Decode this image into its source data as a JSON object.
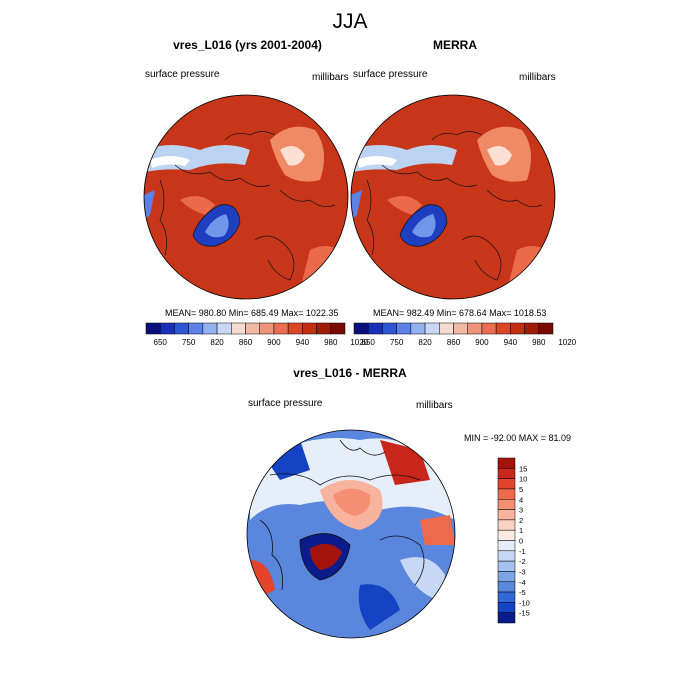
{
  "figure": {
    "title": "JJA"
  },
  "panels": [
    {
      "title": "vres_L016 (yrs 2001-2004)",
      "left_label": "surface pressure",
      "right_label": "millibars",
      "stats": {
        "mean": "980.80",
        "min": "685.49",
        "max": "1022.35",
        "text": "MEAN= 980.80  Min= 685.49  Max= 1022.35"
      }
    },
    {
      "title": "MERRA",
      "left_label": "surface pressure",
      "right_label": "millibars",
      "stats": {
        "mean": "982.49",
        "min": "678.64",
        "max": "1018.53",
        "text": "MEAN= 982.49  Min= 678.64  Max= 1018.53"
      }
    },
    {
      "title": "vres_L016 - MERRA",
      "left_label": "surface pressure",
      "right_label": "millibars",
      "stats": {
        "min": "-92.00",
        "max": "81.09",
        "text": "MIN = -92.00 MAX =  81.09"
      }
    }
  ],
  "chart_data": [
    {
      "type": "heatmap",
      "projection": "north-polar-stereographic",
      "title": "vres_L016 (yrs 2001-2004)",
      "variable": "surface pressure",
      "units": "millibars",
      "mean": 980.8,
      "min": 685.49,
      "max": 1022.35,
      "colorbar": {
        "orientation": "horizontal",
        "tick_labels": [
          "650",
          "750",
          "820",
          "860",
          "900",
          "940",
          "980",
          "1020"
        ],
        "colors": [
          "#0b0f7e",
          "#1a2fb8",
          "#2f55d6",
          "#5c82e8",
          "#93b0f0",
          "#c8d8f6",
          "#f6dcd0",
          "#f2b9a3",
          "#ee9478",
          "#e86e4f",
          "#dc4628",
          "#c22e12",
          "#a01b0a",
          "#7a0c04"
        ]
      }
    },
    {
      "type": "heatmap",
      "projection": "north-polar-stereographic",
      "title": "MERRA",
      "variable": "surface pressure",
      "units": "millibars",
      "mean": 982.49,
      "min": 678.64,
      "max": 1018.53,
      "colorbar": {
        "orientation": "horizontal",
        "tick_labels": [
          "650",
          "750",
          "820",
          "860",
          "900",
          "940",
          "980",
          "1020"
        ],
        "colors": [
          "#0b0f7e",
          "#1a2fb8",
          "#2f55d6",
          "#5c82e8",
          "#93b0f0",
          "#c8d8f6",
          "#f6dcd0",
          "#f2b9a3",
          "#ee9478",
          "#e86e4f",
          "#dc4628",
          "#c22e12",
          "#a01b0a",
          "#7a0c04"
        ]
      }
    },
    {
      "type": "heatmap",
      "projection": "north-polar-stereographic",
      "title": "vres_L016 - MERRA",
      "variable": "surface pressure",
      "units": "millibars",
      "min": -92.0,
      "max": 81.09,
      "colorbar": {
        "orientation": "vertical",
        "tick_labels": [
          "15",
          "10",
          "5",
          "4",
          "3",
          "2",
          "1",
          "0",
          "-1",
          "-2",
          "-3",
          "-4",
          "-5",
          "-10",
          "-15"
        ],
        "colors": [
          "#a3120b",
          "#c8261a",
          "#e5442c",
          "#ef6a4c",
          "#f48f73",
          "#f7b39d",
          "#f9d3c4",
          "#fbebe3",
          "#e6eefa",
          "#c6d8f4",
          "#a5c1ee",
          "#7fa4e6",
          "#5a86dd",
          "#3366d6",
          "#1443c4",
          "#0a1c8c"
        ]
      }
    }
  ]
}
